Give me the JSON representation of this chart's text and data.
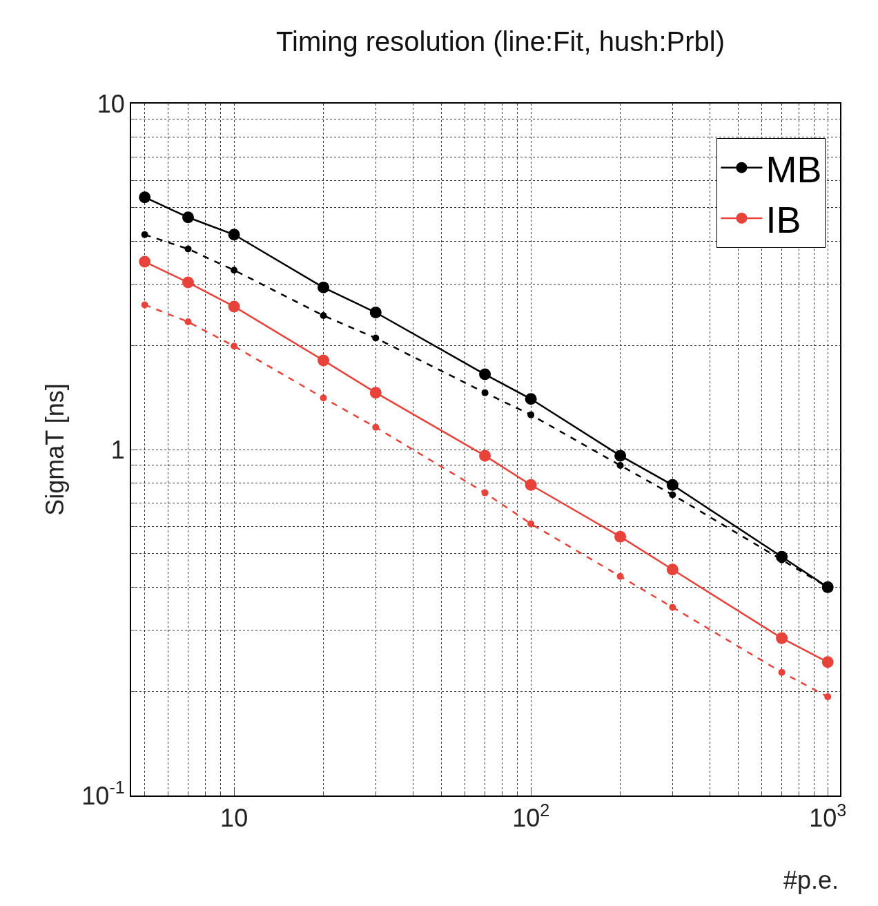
{
  "chart_data": {
    "type": "line",
    "title": "Timing resolution (line:Fit, hush:Prbl)",
    "xlabel": "#p.e.",
    "ylabel": "SigmaT [ns]",
    "x": [
      5,
      7,
      10,
      20,
      30,
      70,
      100,
      200,
      300,
      700,
      1000
    ],
    "series": [
      {
        "name": "MB",
        "color": "#000000",
        "line_style": "solid",
        "values": [
          5.36,
          4.69,
          4.18,
          2.94,
          2.49,
          1.65,
          1.4,
          0.96,
          0.79,
          0.49,
          0.4
        ]
      },
      {
        "color": "#000000",
        "line_style": "dashed",
        "values": [
          4.18,
          3.8,
          3.3,
          2.44,
          2.1,
          1.46,
          1.26,
          0.9,
          0.74,
          0.48,
          0.4
        ]
      },
      {
        "name": "IB",
        "color": "#e8433a",
        "line_style": "solid",
        "values": [
          3.49,
          3.04,
          2.59,
          1.81,
          1.46,
          0.96,
          0.79,
          0.56,
          0.45,
          0.285,
          0.243
        ]
      },
      {
        "color": "#e8433a",
        "line_style": "dashed",
        "values": [
          2.62,
          2.34,
          1.99,
          1.41,
          1.16,
          0.75,
          0.61,
          0.43,
          0.35,
          0.227,
          0.193
        ]
      }
    ],
    "log": "xy",
    "xlim": [
      4.5,
      1100
    ],
    "ylim": [
      0.1,
      10
    ],
    "xticks": [
      10,
      {
        "value": 100,
        "label": "10$^{2}$"
      },
      {
        "value": 1000,
        "label": "10$^{3}$"
      }
    ],
    "yticks": [
      {
        "value": 0.1,
        "label": "10$^{-1}$"
      },
      1,
      10
    ],
    "grid": true,
    "legend": "top right",
    "marker": "circle"
  }
}
